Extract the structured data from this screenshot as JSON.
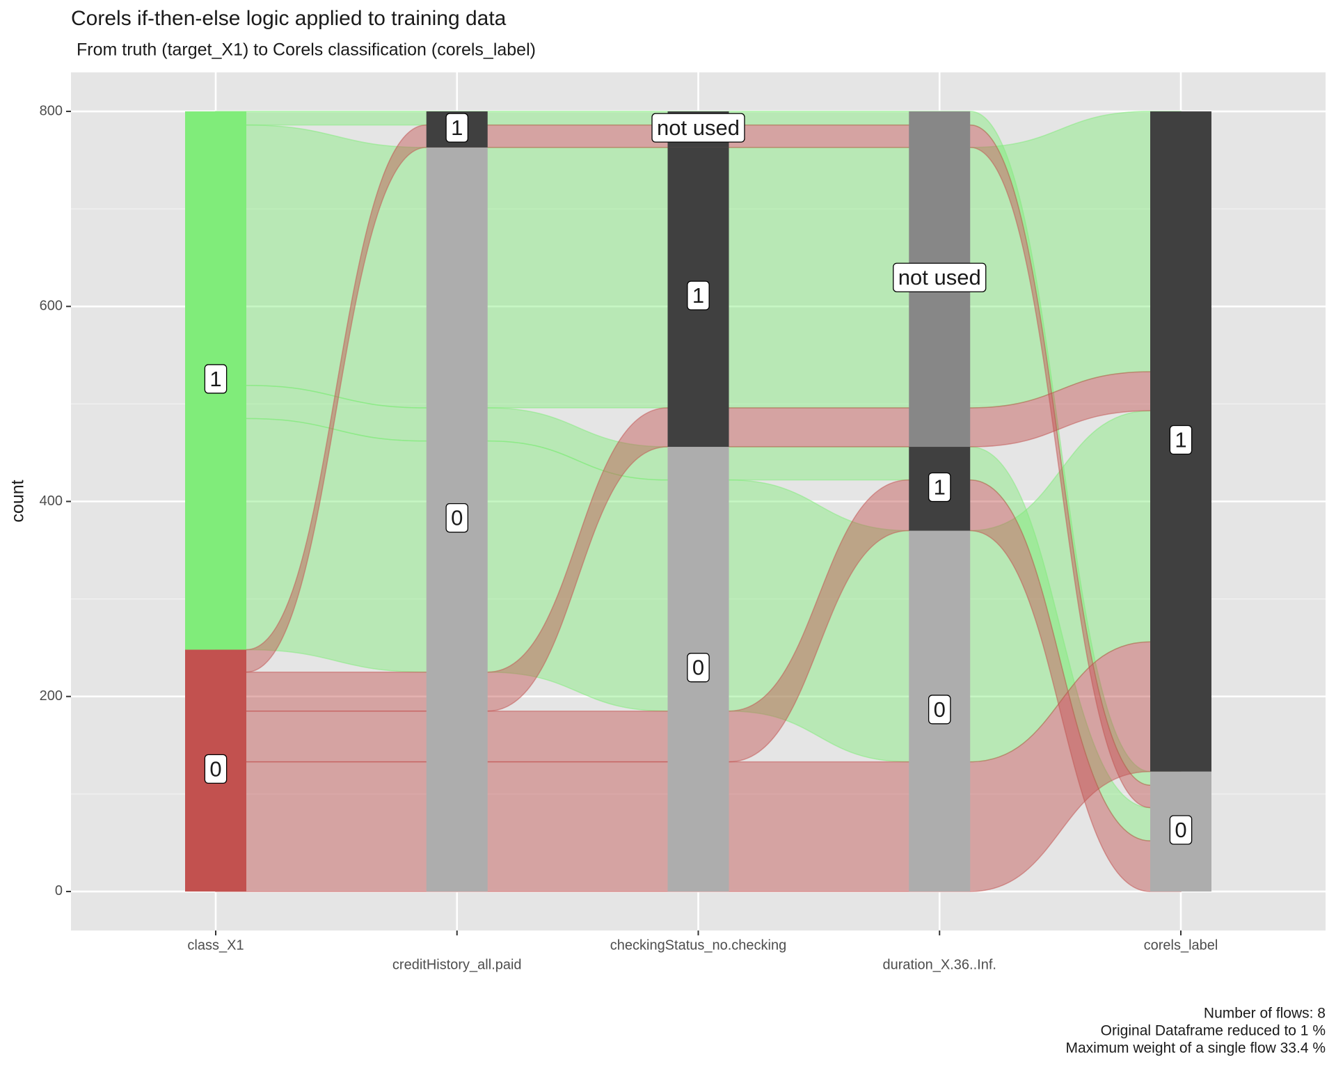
{
  "chart_data": {
    "type": "alluvial",
    "title": "Corels if-then-else logic applied to training data",
    "subtitle": "From truth (target_X1) to Corels classification (corels_label)",
    "y_label": "count",
    "caption": [
      "Number of flows: 8",
      "Original Dataframe reduced to 1 %",
      "Maximum weight of a single flow 33.4 %"
    ],
    "axes": [
      {
        "name": "class_X1",
        "categories": [
          "0",
          "1"
        ],
        "colors": [
          "#c2514f",
          "#80ec7a"
        ]
      },
      {
        "name": "creditHistory_all.paid",
        "categories": [
          "0",
          "1"
        ],
        "colors": [
          "#adadad",
          "#404040"
        ]
      },
      {
        "name": "checkingStatus_no.checking",
        "categories": [
          "0",
          "1",
          "not used"
        ],
        "colors": [
          "#adadad",
          "#404040",
          "#404040"
        ]
      },
      {
        "name": "duration_X.36..Inf.",
        "categories": [
          "0",
          "1",
          "not used"
        ],
        "colors": [
          "#adadad",
          "#404040",
          "#878787"
        ]
      },
      {
        "name": "corels_label",
        "categories": [
          "0",
          "1"
        ],
        "colors": [
          "#adadad",
          "#404040"
        ]
      }
    ],
    "flows": [
      {
        "path": [
          "1",
          "1",
          "not used",
          "not used",
          "0"
        ],
        "count": 14
      },
      {
        "path": [
          "1",
          "0",
          "1",
          "not used",
          "1"
        ],
        "count": 267
      },
      {
        "path": [
          "1",
          "0",
          "0",
          "1",
          "0"
        ],
        "count": 34
      },
      {
        "path": [
          "1",
          "0",
          "0",
          "0",
          "1"
        ],
        "count": 237
      },
      {
        "path": [
          "0",
          "1",
          "not used",
          "not used",
          "0"
        ],
        "count": 23
      },
      {
        "path": [
          "0",
          "0",
          "1",
          "not used",
          "1"
        ],
        "count": 40
      },
      {
        "path": [
          "0",
          "0",
          "0",
          "1",
          "0"
        ],
        "count": 52
      },
      {
        "path": [
          "0",
          "0",
          "0",
          "0",
          "1"
        ],
        "count": 133
      }
    ],
    "ylim": [
      -40,
      840
    ],
    "yticks": [
      0,
      200,
      400,
      600,
      800
    ],
    "grid": true
  }
}
